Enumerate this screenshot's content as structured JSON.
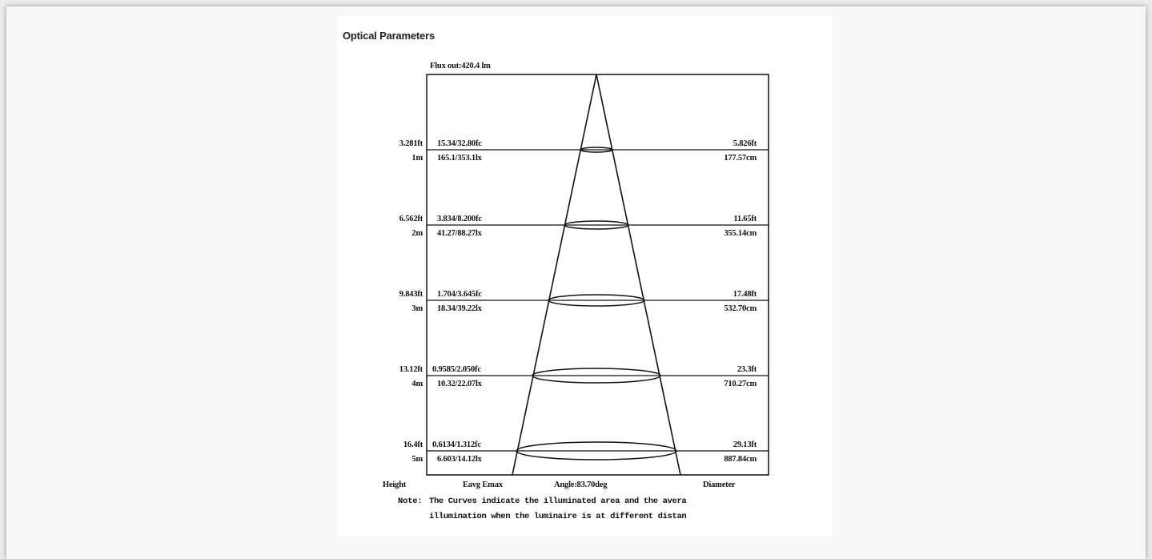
{
  "heading": "Optical Parameters",
  "flux_out": "Flux out:420.4 lm",
  "rows": [
    {
      "height_ft": "3.281ft",
      "height_m": "1m",
      "lux_fc": "15.34/32.80fc",
      "lux_lx": "165.1/353.1lx",
      "diameter_ft": "5.826ft",
      "diameter_cm": "177.57cm"
    },
    {
      "height_ft": "6.562ft",
      "height_m": "2m",
      "lux_fc": "3.834/8.200fc",
      "lux_lx": "41.27/88.27lx",
      "diameter_ft": "11.65ft",
      "diameter_cm": "355.14cm"
    },
    {
      "height_ft": "9.843ft",
      "height_m": "3m",
      "lux_fc": "1.704/3.645fc",
      "lux_lx": "18.34/39.22lx",
      "diameter_ft": "17.48ft",
      "diameter_cm": "532.70cm"
    },
    {
      "height_ft": "13.12ft",
      "height_m": "4m",
      "lux_fc": "0.9585/2.050fc",
      "lux_lx": "10.32/22.07lx",
      "diameter_ft": "23.3ft",
      "diameter_cm": "710.27cm"
    },
    {
      "height_ft": "16.4ft",
      "height_m": "5m",
      "lux_fc": "0.6134/1.312fc",
      "lux_lx": "6.603/14.12lx",
      "diameter_ft": "29.13ft",
      "diameter_cm": "887.84cm"
    }
  ],
  "footer": {
    "height_label": "Height",
    "lux_label": "Eavg Emax",
    "angle_label": "Angle:83.70deg",
    "diameter_label": "Diameter"
  },
  "note": {
    "prefix": "Note:",
    "line1": "The Curves indicate the illuminated area and the avera",
    "line2": "illumination when the luminaire is at different distan"
  },
  "colors": {
    "line": "#111111",
    "background": "#ffffff"
  }
}
